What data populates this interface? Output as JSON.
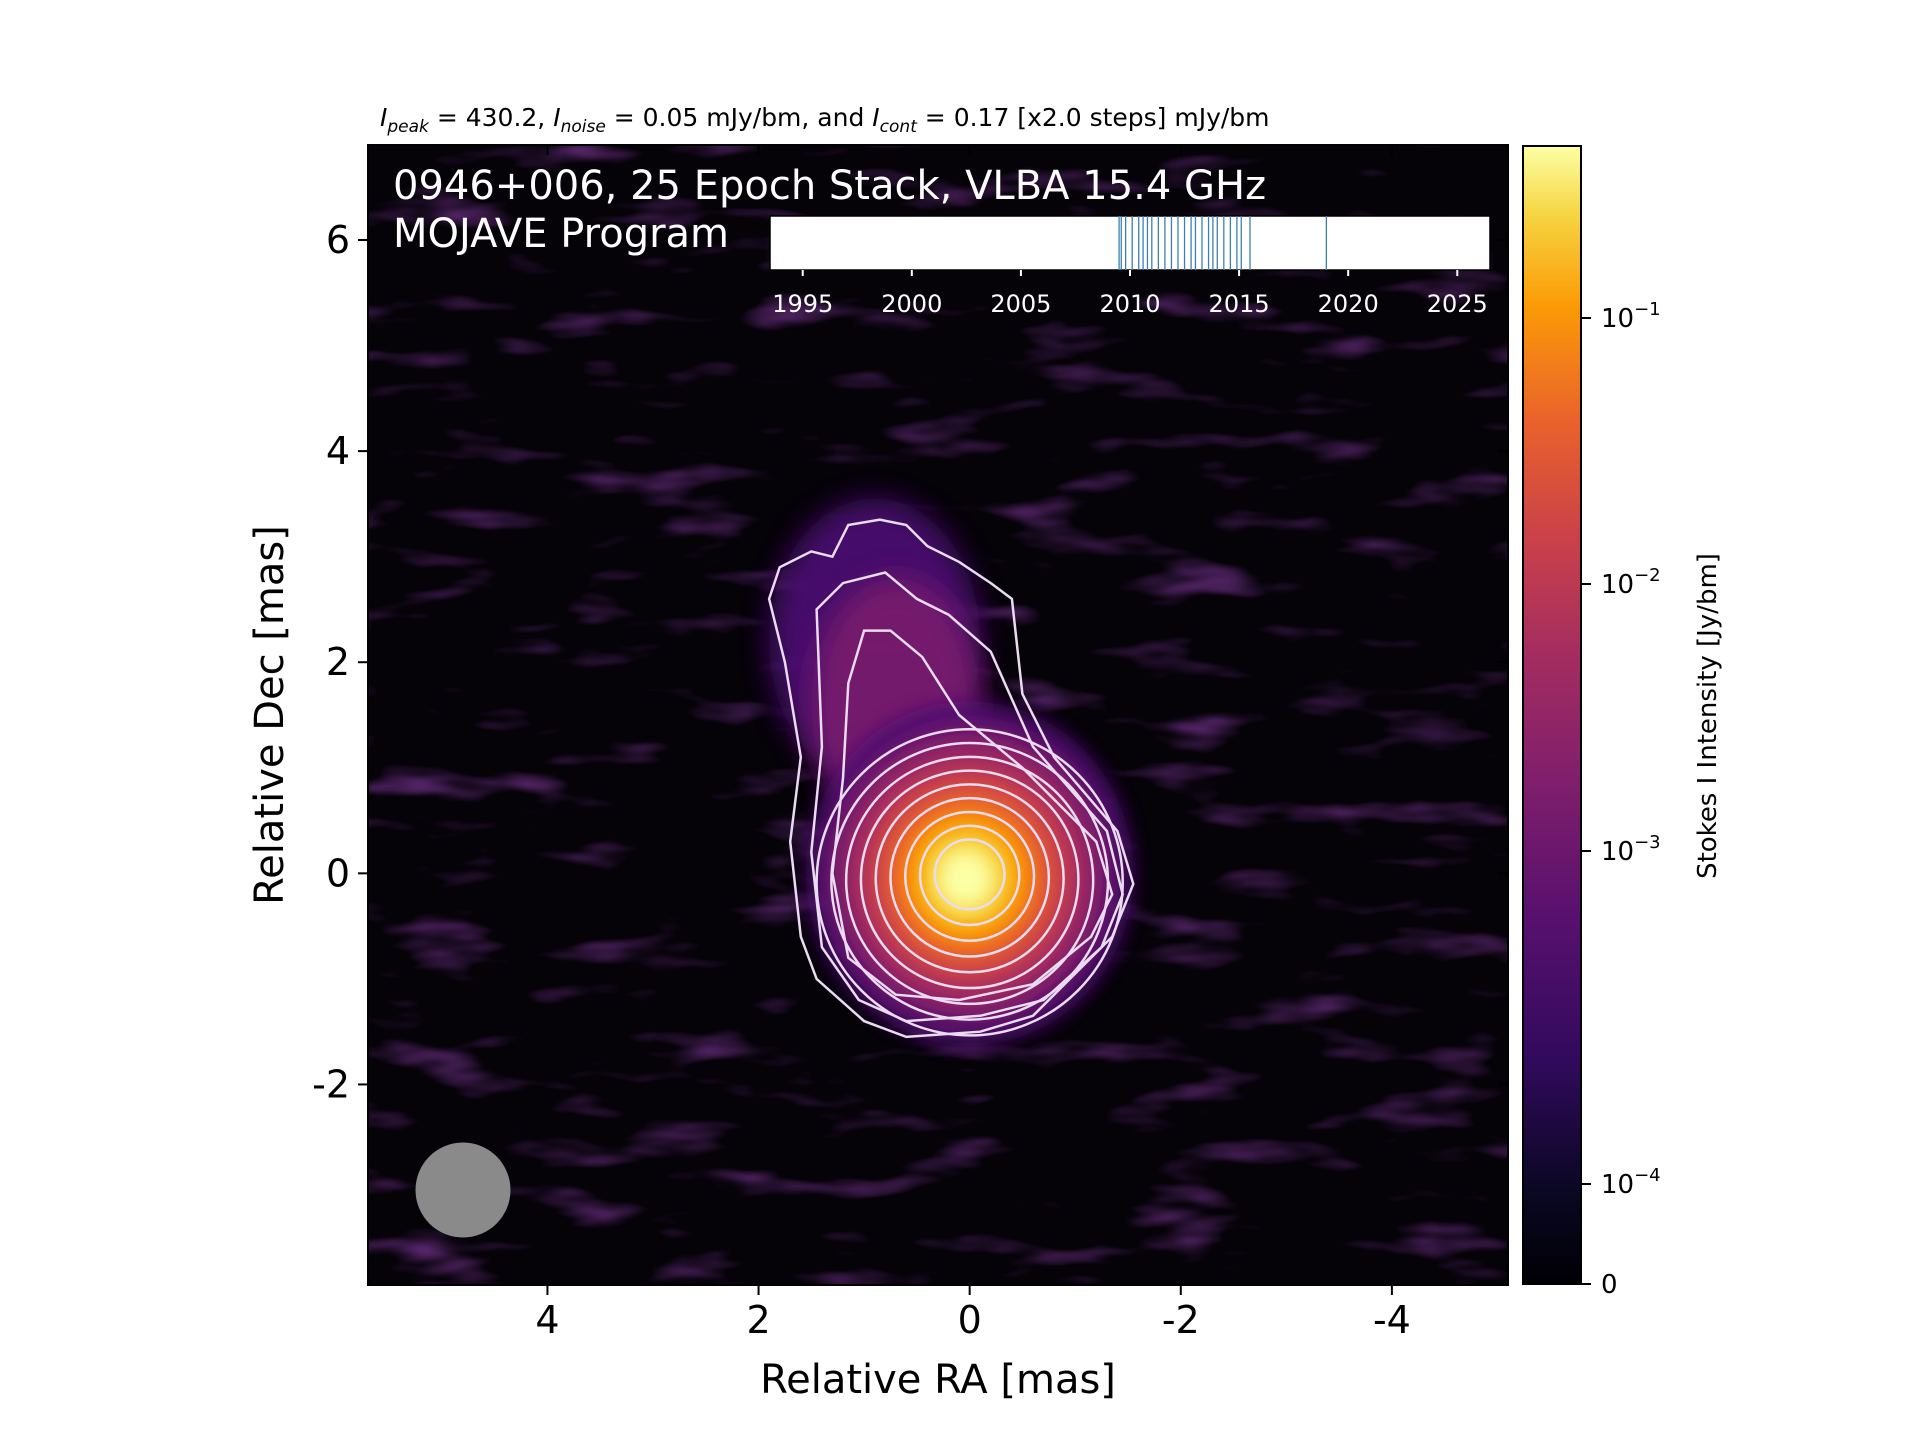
{
  "chart_data": {
    "type": "heatmap",
    "title_parts": {
      "peak_sym": "I",
      "peak_sub": "peak",
      "peak_val": " = 430.2, ",
      "noise_sym": "I",
      "noise_sub": "noise",
      "noise_val": " = 0.05 mJy/bm, and ",
      "cont_sym": "I",
      "cont_sub": "cont",
      "cont_val": " = 0.17 [x2.0 steps] mJy/bm"
    },
    "annotation_line1": "0946+006, 25 Epoch Stack, VLBA 15.4 GHz",
    "annotation_line2": "MOJAVE Program",
    "xlabel": "Relative RA [mas]",
    "ylabel": "Relative Dec [mas]",
    "xlim": [
      5.7,
      -5.1
    ],
    "ylim": [
      -3.9,
      6.9
    ],
    "xticks": [
      {
        "value": 4,
        "label": "4"
      },
      {
        "value": 2,
        "label": "2"
      },
      {
        "value": 0,
        "label": "0"
      },
      {
        "value": -2,
        "label": "-2"
      },
      {
        "value": -4,
        "label": "-4"
      }
    ],
    "yticks": [
      {
        "value": -2,
        "label": "-2"
      },
      {
        "value": 0,
        "label": "0"
      },
      {
        "value": 2,
        "label": "2"
      },
      {
        "value": 4,
        "label": "4"
      },
      {
        "value": 6,
        "label": "6"
      }
    ],
    "colormap": "inferno",
    "colorbar": {
      "label": "Stokes I Intensity [Jy/bm]",
      "scale": "log",
      "ticks": [
        {
          "base": "0",
          "exp": ""
        },
        {
          "base": "10",
          "exp": "−4"
        },
        {
          "base": "10",
          "exp": "−3"
        },
        {
          "base": "10",
          "exp": "−2"
        },
        {
          "base": "10",
          "exp": "−1"
        }
      ]
    },
    "peak_intensity_mJy_per_beam": 430.2,
    "noise_mJy_per_beam": 0.05,
    "lowest_contour_mJy_per_beam": 0.17,
    "contour_step_factor": 2.0,
    "contour_count": 12,
    "core_position_mas": [
      0,
      0
    ],
    "beam": {
      "center_mas": [
        4.8,
        -3.0
      ],
      "major_mas": 0.9,
      "minor_mas": 0.9
    },
    "epoch_timeline": {
      "xlim": [
        1993.5,
        2026.5
      ],
      "tick_labels": [
        "1995",
        "2000",
        "2005",
        "2010",
        "2015",
        "2020",
        "2025"
      ],
      "tick_years": [
        1995,
        2000,
        2005,
        2010,
        2015,
        2020,
        2025
      ],
      "epochs": [
        2009.5,
        2009.8,
        2010.1,
        2010.4,
        2010.8,
        2011.0,
        2011.3,
        2011.6,
        2011.9,
        2012.2,
        2012.8,
        2013.0,
        2013.3,
        2013.6,
        2014.0,
        2014.3,
        2014.6,
        2014.9,
        2015.1,
        2015.5,
        2009.6,
        2010.6,
        2012.5,
        2013.8,
        2019.0
      ]
    }
  },
  "colors": {
    "contour": "#e9dcf0",
    "beam": "#8a8a8a",
    "epoch_line": "#3b7fb4"
  }
}
